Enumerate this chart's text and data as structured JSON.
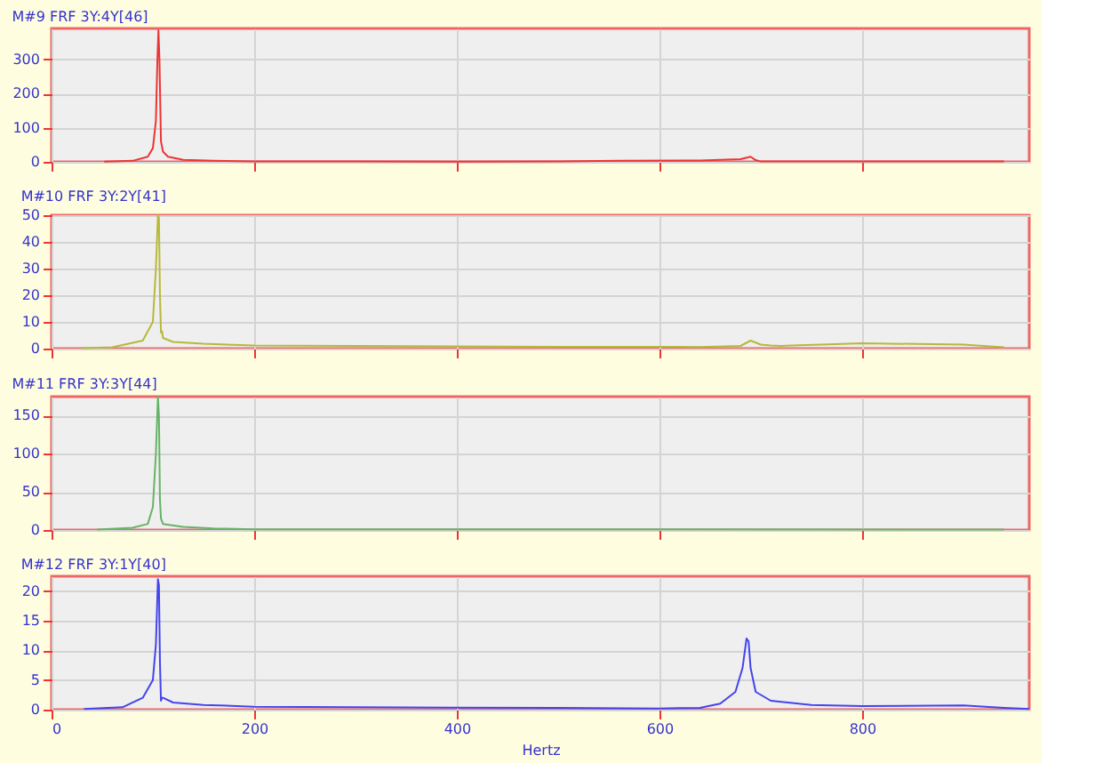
{
  "chart_data": [
    {
      "type": "line",
      "title": "M#9 FRF 3Y:4Y[46]",
      "xlim": [
        0,
        965
      ],
      "xticks": [
        0,
        200,
        400,
        600,
        800
      ],
      "ylim": [
        0,
        390
      ],
      "yticks": [
        0,
        100,
        200,
        300
      ],
      "grid": true,
      "tick_labels": "y",
      "series": [
        {
          "color": "#ee3333",
          "x": [
            52,
            80,
            95,
            100,
            103,
            104.5,
            105.5,
            106.5,
            108,
            110,
            115,
            130,
            160,
            200,
            300,
            400,
            500,
            560,
            640,
            680,
            690,
            695,
            700,
            750,
            800,
            940
          ],
          "values": [
            0.5,
            3,
            15,
            40,
            120,
            300,
            385,
            300,
            60,
            30,
            15,
            6,
            3,
            1.5,
            1,
            0.5,
            1,
            3,
            4,
            8,
            15,
            5,
            1,
            1,
            1,
            1
          ]
        }
      ]
    },
    {
      "type": "line",
      "title": "M#10 FRF 3Y:2Y[41]",
      "xlim": [
        0,
        965
      ],
      "xticks": [
        0,
        200,
        400,
        600,
        800
      ],
      "ylim": [
        0,
        50
      ],
      "yticks": [
        0,
        10,
        20,
        30,
        40,
        50
      ],
      "grid": true,
      "tick_labels": "y",
      "series": [
        {
          "color": "#b8b83a",
          "x": [
            30,
            60,
            90,
            100,
            103,
            105,
            106,
            107,
            108,
            109,
            110,
            120,
            150,
            200,
            300,
            400,
            500,
            600,
            640,
            680,
            690,
            700,
            710,
            720,
            730,
            760,
            800,
            900,
            940
          ],
          "values": [
            0.2,
            0.5,
            3,
            10,
            30,
            50,
            49,
            20,
            6,
            6.5,
            4,
            2.5,
            1.8,
            1.2,
            1,
            0.8,
            0.7,
            0.7,
            0.6,
            1,
            3,
            1.5,
            1.2,
            1,
            1.2,
            1.5,
            2,
            1.5,
            0.5
          ]
        }
      ]
    },
    {
      "type": "line",
      "title": "M#11 FRF 3Y:3Y[44]",
      "xlim": [
        0,
        965
      ],
      "xticks": [
        0,
        200,
        400,
        600,
        800
      ],
      "ylim": [
        0,
        175
      ],
      "yticks": [
        0,
        50,
        100,
        150
      ],
      "grid": true,
      "tick_labels": "y",
      "series": [
        {
          "color": "#66b366",
          "x": [
            45,
            80,
            95,
            100,
            103,
            105,
            106,
            107,
            108,
            110,
            130,
            160,
            200,
            400,
            600,
            940
          ],
          "values": [
            0.5,
            3,
            8,
            30,
            100,
            175,
            150,
            40,
            15,
            8,
            4,
            2,
            1,
            0.8,
            0.8,
            0.5
          ]
        }
      ]
    },
    {
      "type": "line",
      "title": "M#12 FRF 3Y:1Y[40]",
      "xlabel": "Hertz",
      "xlim": [
        0,
        965
      ],
      "xticks": [
        0,
        200,
        400,
        600,
        800
      ],
      "ylim": [
        0,
        22.5
      ],
      "yticks": [
        0,
        5,
        10,
        15,
        20
      ],
      "grid": true,
      "series": [
        {
          "color": "#4444ee",
          "x": [
            32,
            70,
            90,
            100,
            103,
            105,
            106,
            107,
            108,
            109,
            110,
            120,
            150,
            200,
            300,
            500,
            600,
            640,
            660,
            675,
            682,
            686,
            688,
            690,
            695,
            710,
            750,
            800,
            900,
            940,
            965
          ],
          "values": [
            0.1,
            0.4,
            2,
            5,
            11,
            22,
            21,
            8,
            1.5,
            2,
            2,
            1.2,
            0.8,
            0.5,
            0.4,
            0.3,
            0.2,
            0.3,
            1,
            3,
            7,
            12,
            11.5,
            7,
            3,
            1.5,
            0.8,
            0.6,
            0.7,
            0.3,
            0.1
          ]
        }
      ]
    }
  ]
}
